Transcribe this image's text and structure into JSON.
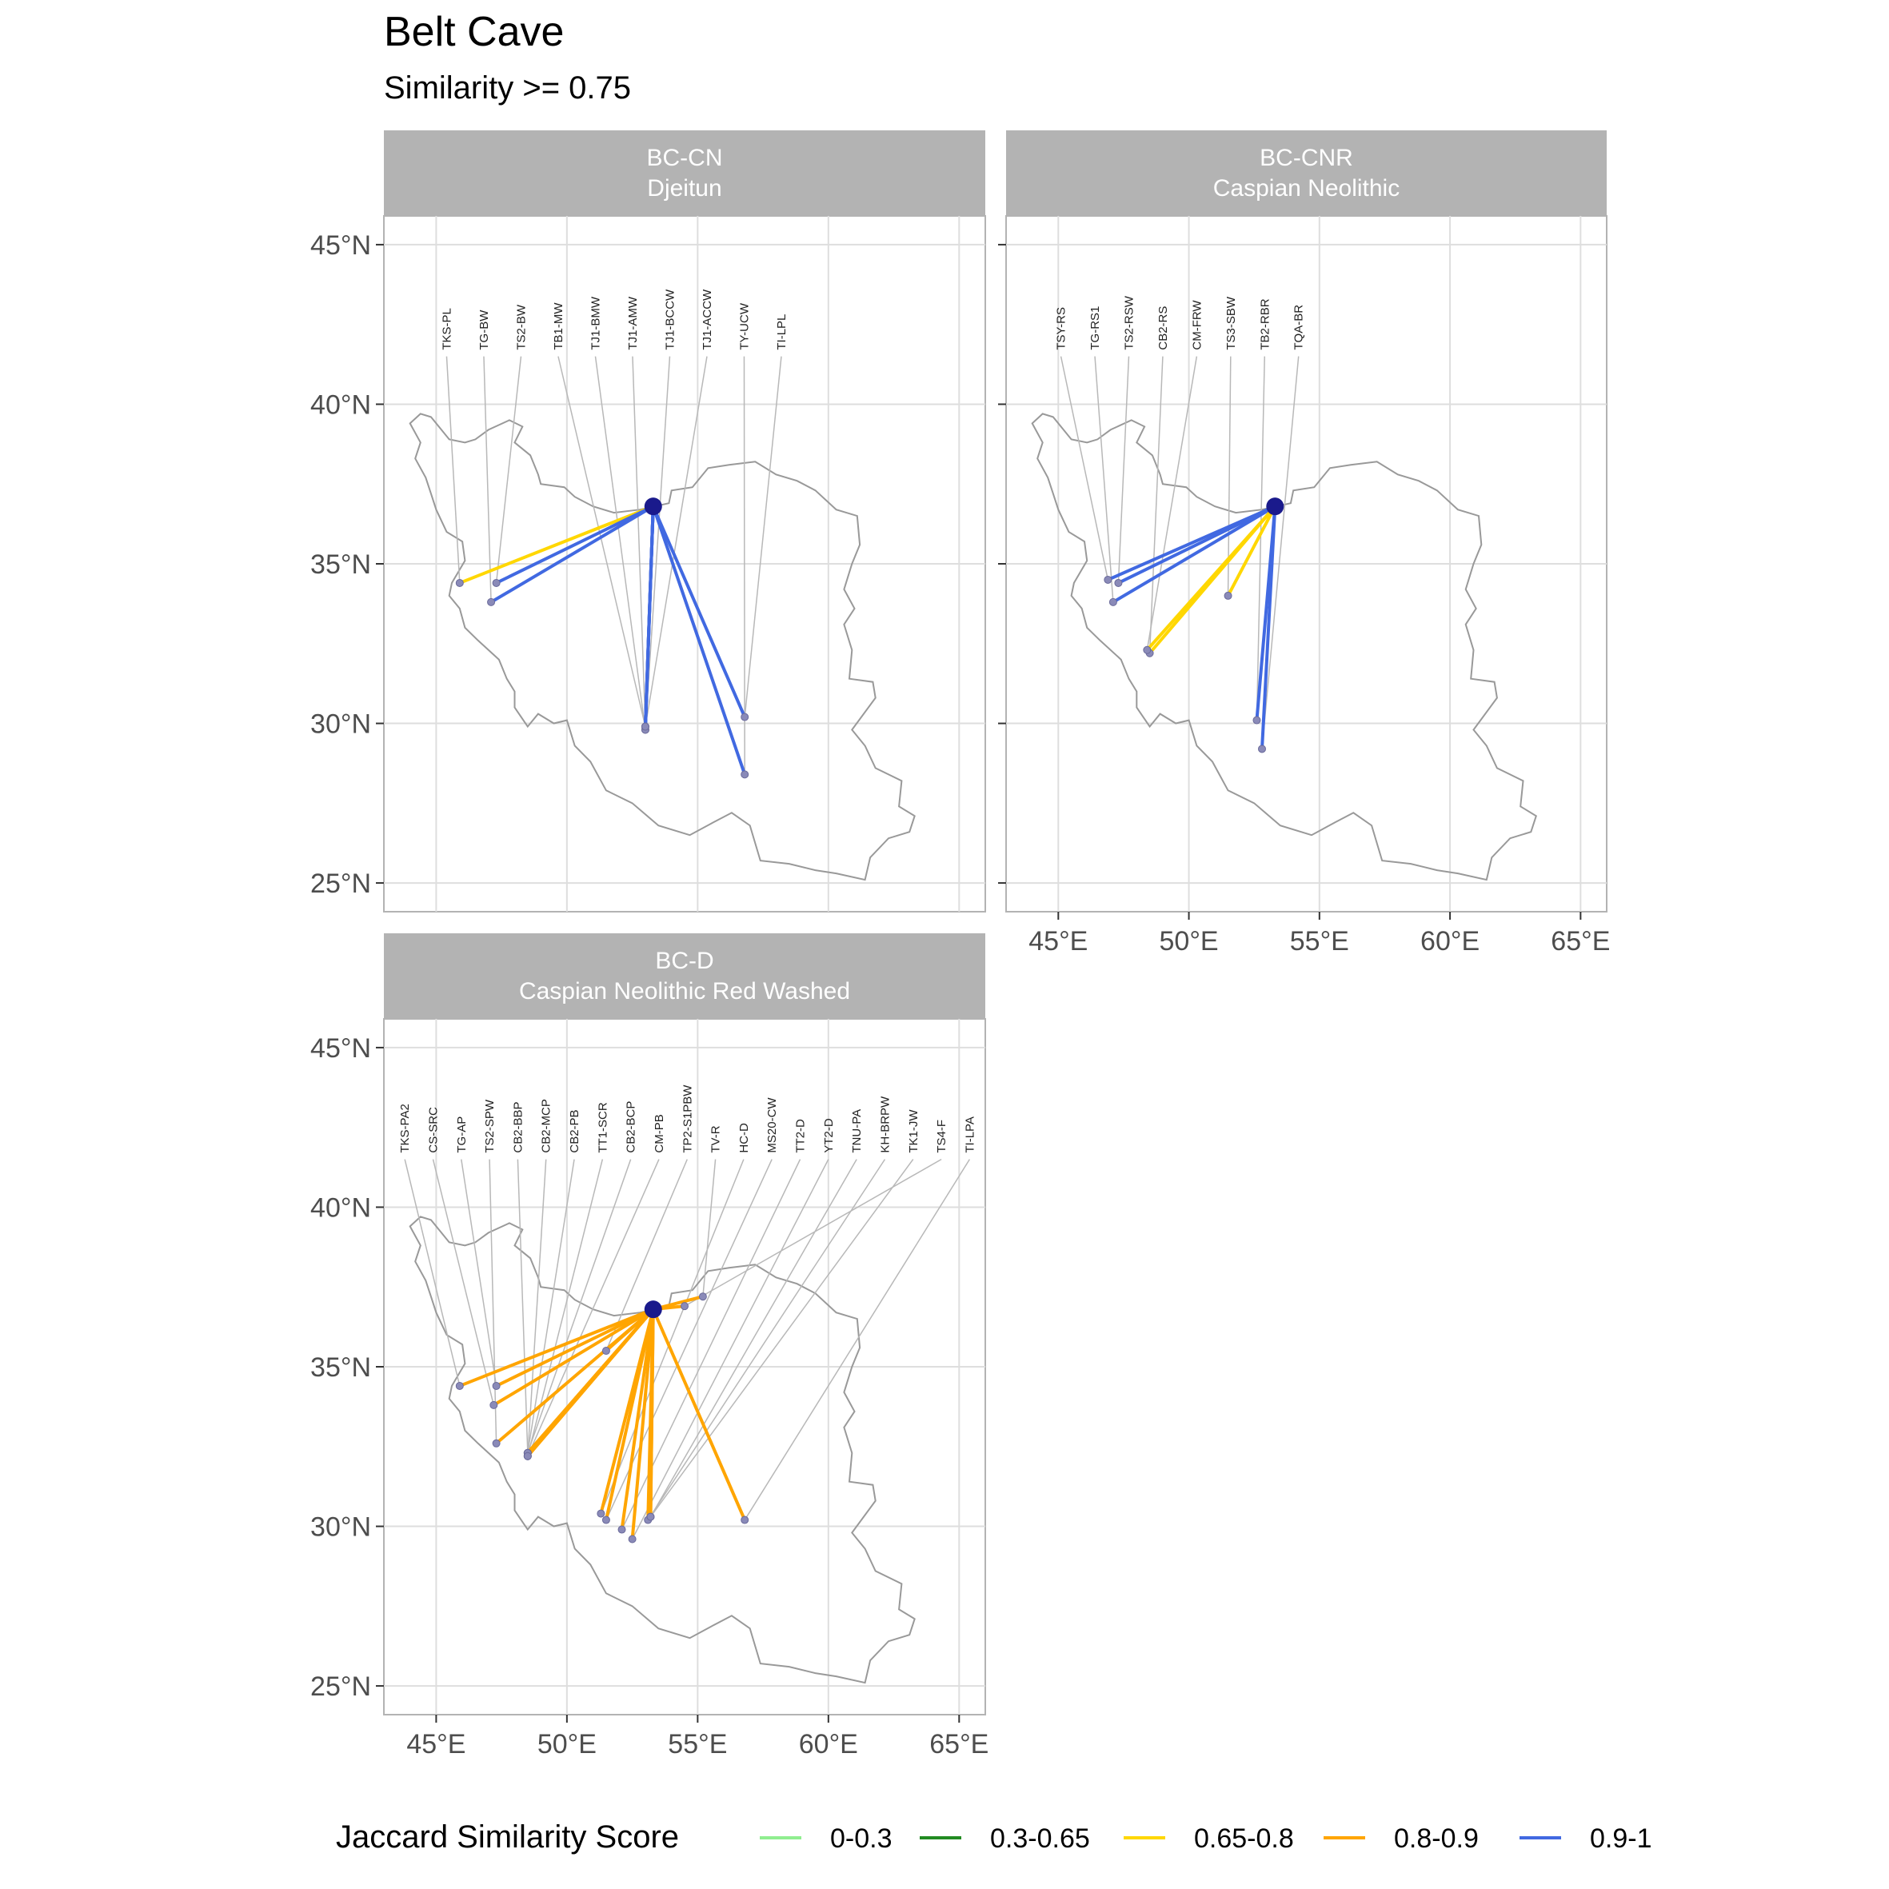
{
  "title": "Belt Cave",
  "subtitle": "Similarity >= 0.75",
  "legend": {
    "title": "Jaccard Similarity Score",
    "items": [
      {
        "label": "0-0.3",
        "color": "#90EE90"
      },
      {
        "label": "0.3-0.65",
        "color": "#228B22"
      },
      {
        "label": "0.65-0.8",
        "color": "#FFD700"
      },
      {
        "label": "0.8-0.9",
        "color": "#FFA500"
      },
      {
        "label": "0.9-1",
        "color": "#4169E1"
      }
    ]
  },
  "map": {
    "lat_ticks": [
      {
        "value": 45,
        "label": "45°N"
      },
      {
        "value": 40,
        "label": "40°N"
      },
      {
        "value": 35,
        "label": "35°N"
      },
      {
        "value": 30,
        "label": "30°N"
      },
      {
        "value": 25,
        "label": "25°N"
      }
    ],
    "lon_ticks": [
      {
        "value": 45,
        "label": "45°E"
      },
      {
        "value": 50,
        "label": "50°E"
      },
      {
        "value": 55,
        "label": "55°E"
      },
      {
        "value": 60,
        "label": "60°E"
      },
      {
        "value": 65,
        "label": "65°E"
      }
    ],
    "lon_range": [
      43,
      66
    ],
    "lat_range": [
      24.1,
      45.9
    ],
    "origin": {
      "lon": 53.3,
      "lat": 36.8
    },
    "label_lat": 41.7,
    "strip_color": "#b3b3b3",
    "border_color": "#999999",
    "origin_color": "#1a1a8c"
  },
  "chart_data": {
    "type": "map",
    "panels": [
      {
        "id": "BC-CN",
        "strip_line1": "BC-CN",
        "strip_line2": "Djeitun",
        "label_lon_start": 45.4,
        "label_lon_end": 58.2,
        "sites": [
          {
            "label": "TKS-PL",
            "lon": 45.9,
            "lat": 34.4,
            "band": "0.65-0.8"
          },
          {
            "label": "TG-BW",
            "lon": 47.1,
            "lat": 33.8,
            "band": "0.9-1"
          },
          {
            "label": "TS2-BW",
            "lon": 47.3,
            "lat": 34.4,
            "band": "0.9-1"
          },
          {
            "label": "TB1-MW",
            "lon": 53.0,
            "lat": 29.9,
            "band": "0.9-1"
          },
          {
            "label": "TJ1-BMW",
            "lon": 53.0,
            "lat": 29.8,
            "band": "0.9-1"
          },
          {
            "label": "TJ1-AMW",
            "lon": 53.0,
            "lat": 29.9,
            "band": "0.9-1"
          },
          {
            "label": "TJ1-BCCW",
            "lon": 53.0,
            "lat": 29.8,
            "band": "0.9-1"
          },
          {
            "label": "TJ1-ACCW",
            "lon": 53.0,
            "lat": 29.9,
            "band": "0.9-1"
          },
          {
            "label": "TY-UCW",
            "lon": 56.8,
            "lat": 28.4,
            "band": "0.9-1"
          },
          {
            "label": "TI-LPL",
            "lon": 56.8,
            "lat": 30.2,
            "band": "0.9-1"
          }
        ]
      },
      {
        "id": "BC-CNR",
        "strip_line1": "BC-CNR",
        "strip_line2": "Caspian Neolithic",
        "label_lon_start": 45.1,
        "label_lon_end": 54.2,
        "sites": [
          {
            "label": "TSY-RS",
            "lon": 46.9,
            "lat": 34.5,
            "band": "0.9-1"
          },
          {
            "label": "TG-RS1",
            "lon": 47.1,
            "lat": 33.8,
            "band": "0.9-1"
          },
          {
            "label": "TS2-RSW",
            "lon": 47.3,
            "lat": 34.4,
            "band": "0.9-1"
          },
          {
            "label": "CB2-RS",
            "lon": 48.5,
            "lat": 32.2,
            "band": "0.65-0.8"
          },
          {
            "label": "CM-FRW",
            "lon": 48.4,
            "lat": 32.3,
            "band": "0.65-0.8"
          },
          {
            "label": "TS3-SBW",
            "lon": 51.5,
            "lat": 34.0,
            "band": "0.65-0.8"
          },
          {
            "label": "TB2-RBR",
            "lon": 52.6,
            "lat": 30.1,
            "band": "0.9-1"
          },
          {
            "label": "TQA-BR",
            "lon": 52.8,
            "lat": 29.2,
            "band": "0.9-1"
          }
        ]
      },
      {
        "id": "BC-D",
        "strip_line1": "BC-D",
        "strip_line2": "Caspian Neolithic Red Washed",
        "label_lon_start": 43.8,
        "label_lon_end": 65.4,
        "sites": [
          {
            "label": "TKS-PA2",
            "lon": 45.9,
            "lat": 34.4,
            "band": "0.8-0.9"
          },
          {
            "label": "CS-SRC",
            "lon": 47.2,
            "lat": 33.8,
            "band": "0.8-0.9"
          },
          {
            "label": "TG-AP",
            "lon": 47.3,
            "lat": 34.4,
            "band": "0.8-0.9"
          },
          {
            "label": "TS2-SPW",
            "lon": 47.3,
            "lat": 32.6,
            "band": "0.8-0.9"
          },
          {
            "label": "CB2-BBP",
            "lon": 48.5,
            "lat": 32.3,
            "band": "0.8-0.9"
          },
          {
            "label": "CB2-MCP",
            "lon": 48.5,
            "lat": 32.2,
            "band": "0.8-0.9"
          },
          {
            "label": "CB2-PB",
            "lon": 48.5,
            "lat": 32.3,
            "band": "0.8-0.9"
          },
          {
            "label": "TT1-SCR",
            "lon": 48.5,
            "lat": 32.2,
            "band": "0.8-0.9"
          },
          {
            "label": "CB2-BCP",
            "lon": 48.5,
            "lat": 32.3,
            "band": "0.8-0.9"
          },
          {
            "label": "CM-PB",
            "lon": 48.5,
            "lat": 32.2,
            "band": "0.8-0.9"
          },
          {
            "label": "TP2-S1PBW",
            "lon": 51.5,
            "lat": 35.5,
            "band": "0.8-0.9"
          },
          {
            "label": "TV-R",
            "lon": 55.2,
            "lat": 37.2,
            "band": "0.8-0.9"
          },
          {
            "label": "HC-D",
            "lon": 51.3,
            "lat": 30.4,
            "band": "0.8-0.9"
          },
          {
            "label": "MS20-CW",
            "lon": 51.5,
            "lat": 30.2,
            "band": "0.8-0.9"
          },
          {
            "label": "TT2-D",
            "lon": 52.1,
            "lat": 29.9,
            "band": "0.8-0.9"
          },
          {
            "label": "YT2-D",
            "lon": 52.5,
            "lat": 29.6,
            "band": "0.8-0.9"
          },
          {
            "label": "TNU-PA",
            "lon": 53.2,
            "lat": 30.3,
            "band": "0.8-0.9"
          },
          {
            "label": "KH-BRPW",
            "lon": 53.1,
            "lat": 30.2,
            "band": "0.8-0.9"
          },
          {
            "label": "TK1-JW",
            "lon": 53.2,
            "lat": 30.3,
            "band": "0.8-0.9"
          },
          {
            "label": "TS4-F",
            "lon": 54.5,
            "lat": 36.9,
            "band": "0.8-0.9"
          },
          {
            "label": "TI-LPA",
            "lon": 56.8,
            "lat": 30.2,
            "band": "0.8-0.9"
          }
        ]
      }
    ]
  }
}
